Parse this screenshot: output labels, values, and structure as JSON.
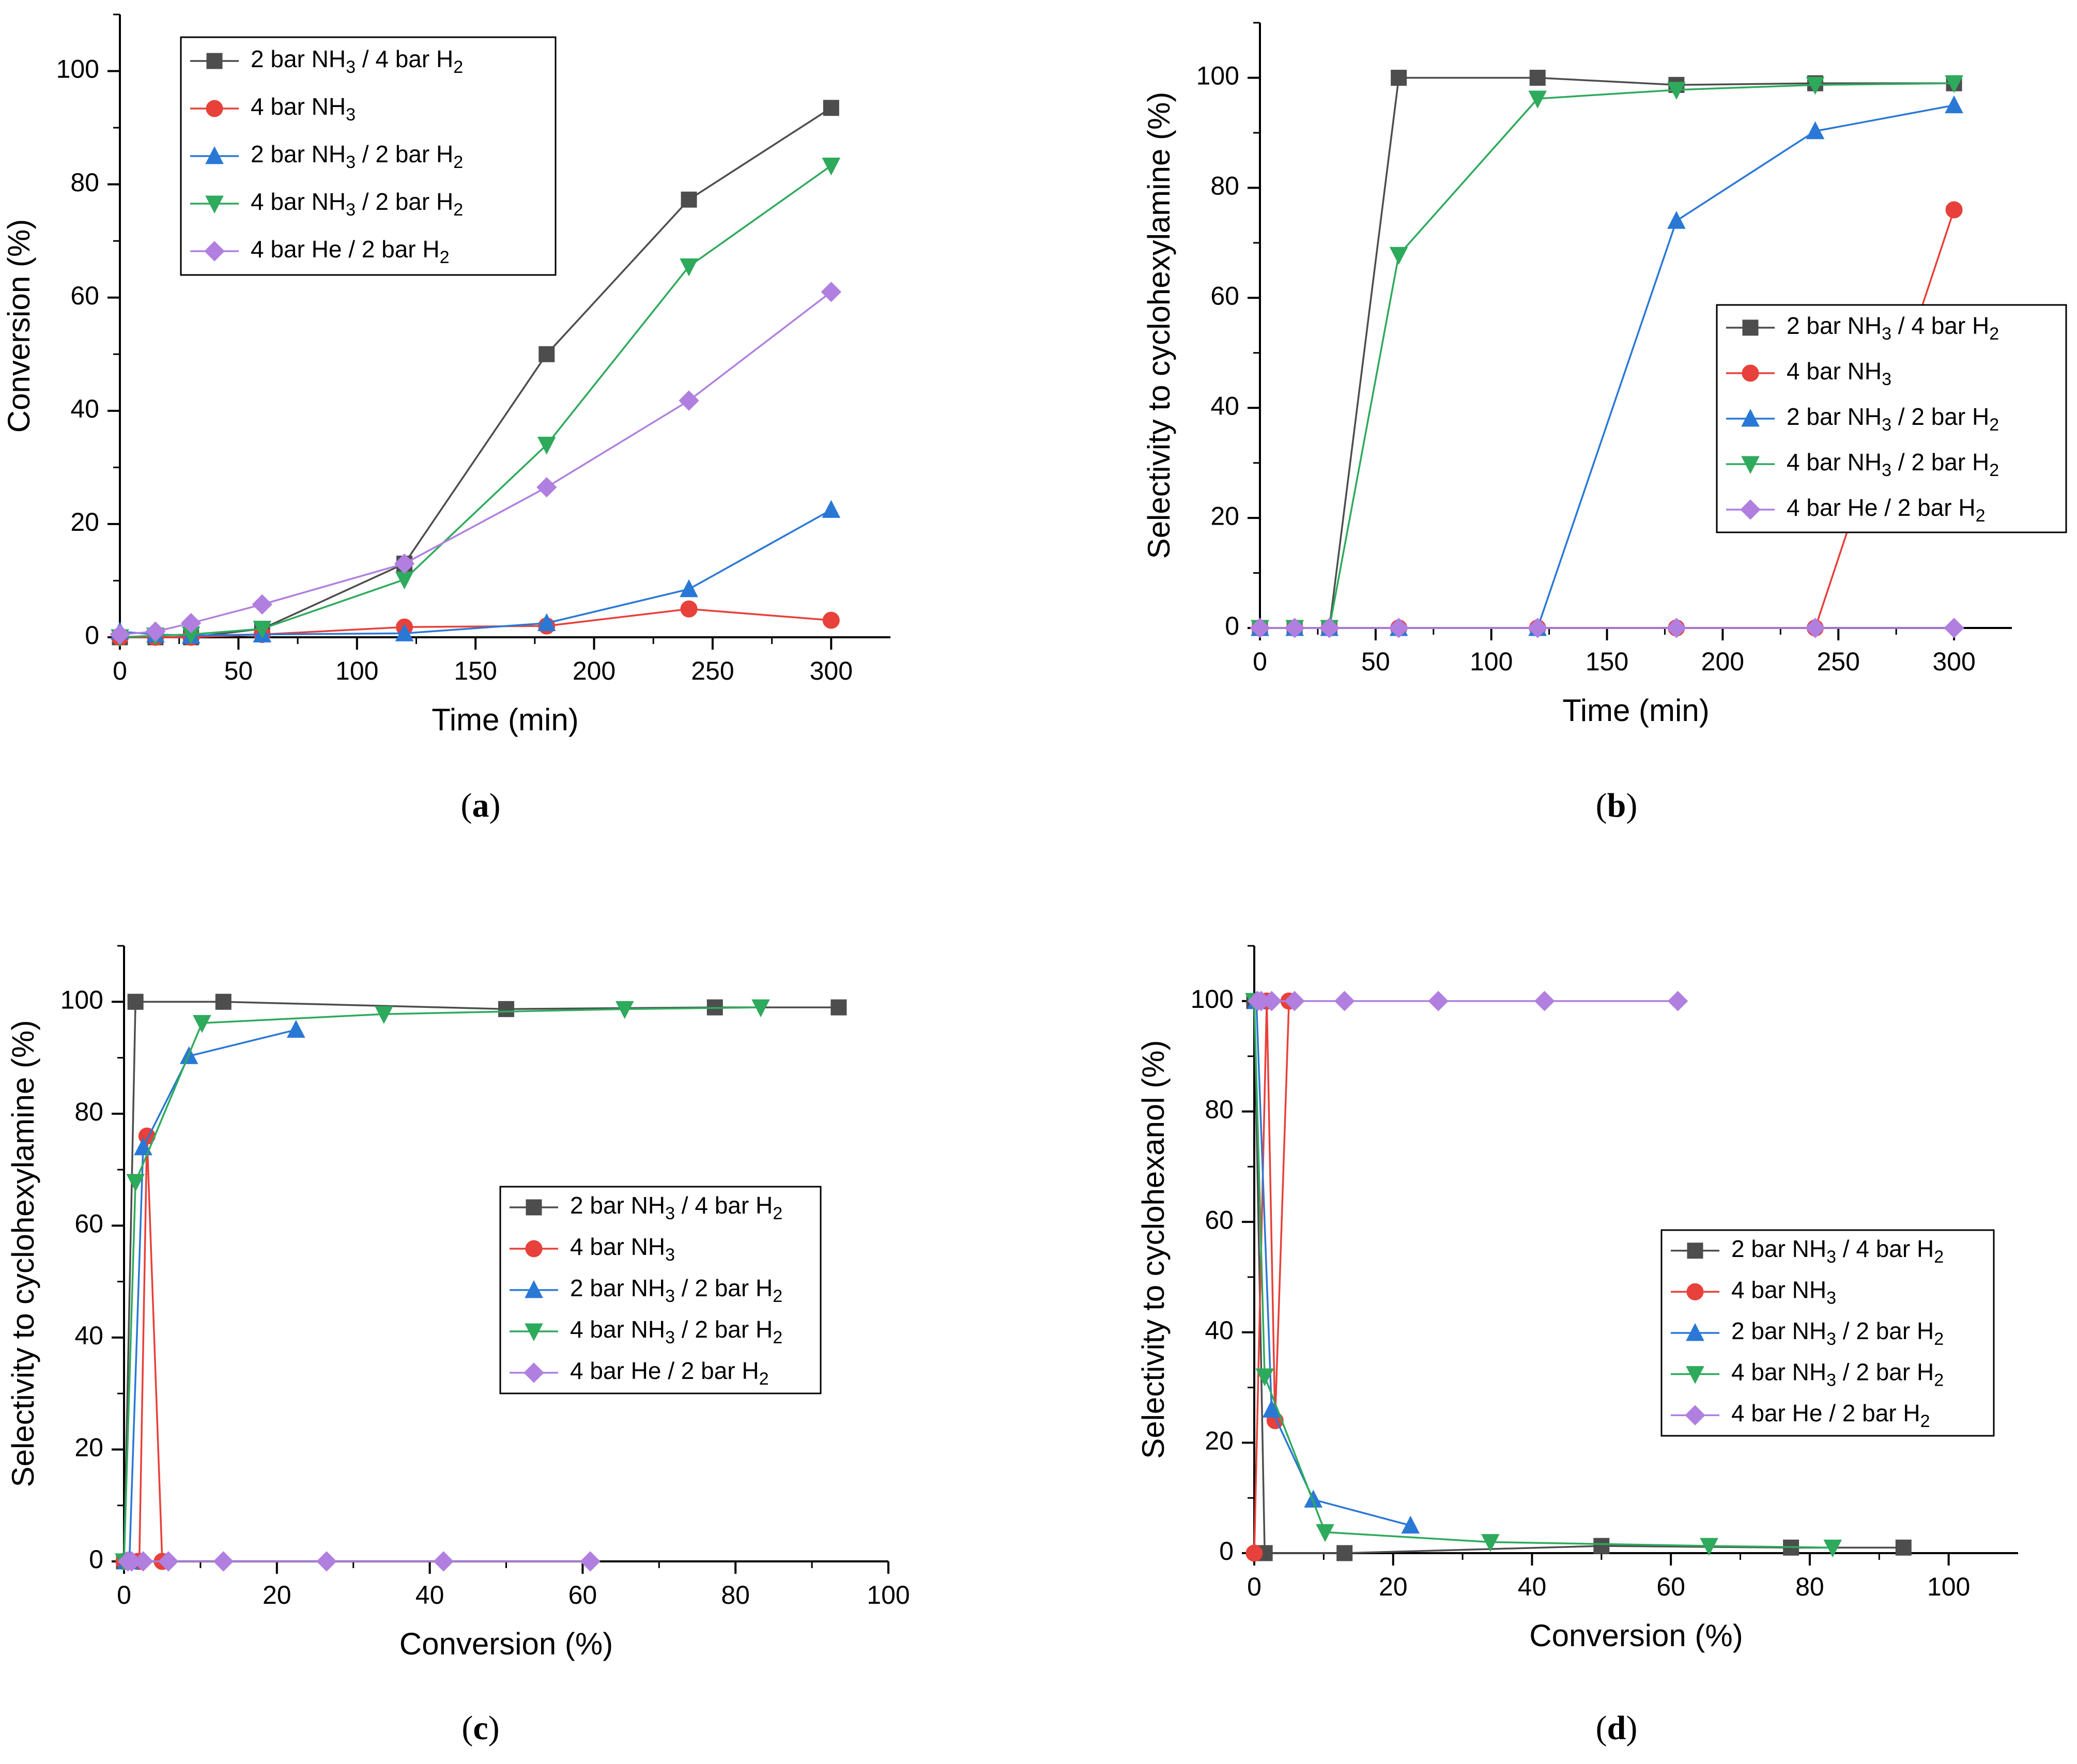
{
  "figure": {
    "series_styles": [
      {
        "color": "#4d4d4d",
        "marker": "square"
      },
      {
        "color": "#e8403a",
        "marker": "circle"
      },
      {
        "color": "#2a78d6",
        "marker": "triangle-up"
      },
      {
        "color": "#2eaa5c",
        "marker": "triangle-down"
      },
      {
        "color": "#b07fe0",
        "marker": "diamond"
      }
    ]
  },
  "chart_data": [
    {
      "id": "a",
      "type": "line",
      "caption": "a",
      "xlabel": "Time (min)",
      "ylabel": "Conversion (%)",
      "xlim": [
        0,
        325
      ],
      "ylim": [
        0,
        110
      ],
      "xticks": [
        0,
        50,
        100,
        150,
        200,
        250,
        300
      ],
      "yticks": [
        0,
        20,
        40,
        60,
        80,
        100
      ],
      "legend_position": "top-left",
      "series": [
        {
          "name": "2 bar NH3 / 4 bar H2",
          "label": {
            "pre": "2 bar NH",
            "s1": "3",
            "mid": " / 4 bar H",
            "s2": "2"
          },
          "x": [
            0,
            15,
            30,
            60,
            120,
            180,
            240,
            300
          ],
          "y": [
            0,
            0,
            0,
            1.5,
            13,
            50,
            77.3,
            93.5
          ]
        },
        {
          "name": "4 bar NH3",
          "label": {
            "pre": "4 bar NH",
            "s1": "3",
            "mid": "",
            "s2": ""
          },
          "x": [
            0,
            15,
            30,
            60,
            120,
            180,
            240,
            300
          ],
          "y": [
            0,
            0,
            0,
            0.5,
            1.8,
            2,
            5,
            3
          ]
        },
        {
          "name": "2 bar NH3 / 2 bar H2",
          "label": {
            "pre": "2 bar NH",
            "s1": "3",
            "mid": " / 2 bar H",
            "s2": "2"
          },
          "x": [
            0,
            15,
            30,
            60,
            120,
            180,
            240,
            300
          ],
          "y": [
            1,
            0.5,
            0.3,
            0.5,
            0.7,
            2.5,
            8.5,
            22.5
          ]
        },
        {
          "name": "4 bar NH3 / 2 bar H2",
          "label": {
            "pre": "4 bar NH",
            "s1": "3",
            "mid": " / 2 bar H",
            "s2": "2"
          },
          "x": [
            0,
            15,
            30,
            60,
            120,
            180,
            240,
            300
          ],
          "y": [
            0,
            0.3,
            0.5,
            1.5,
            10.2,
            34,
            65.5,
            83.3
          ]
        },
        {
          "name": "4 bar He / 2 bar H2",
          "label": {
            "pre": "4 bar He / 2 bar H",
            "s1": "2",
            "mid": "",
            "s2": ""
          },
          "x": [
            0,
            15,
            30,
            60,
            120,
            180,
            240,
            300
          ],
          "y": [
            0.5,
            1,
            2.5,
            5.8,
            13,
            26.5,
            41.8,
            61
          ]
        }
      ]
    },
    {
      "id": "b",
      "type": "line",
      "caption": "b",
      "xlabel": "Time (min)",
      "ylabel": "Selectivity to cyclohexylamine (%)",
      "xlim": [
        0,
        325
      ],
      "ylim": [
        0,
        110
      ],
      "xticks": [
        0,
        50,
        100,
        150,
        200,
        250,
        300
      ],
      "yticks": [
        0,
        20,
        40,
        60,
        80,
        100
      ],
      "legend_position": "center-right",
      "series": [
        {
          "name": "2 bar NH3 / 4 bar H2",
          "label": {
            "pre": "2 bar NH",
            "s1": "3",
            "mid": " / 4 bar H",
            "s2": "2"
          },
          "x": [
            0,
            15,
            30,
            60,
            120,
            180,
            240,
            300
          ],
          "y": [
            0,
            0,
            0,
            100,
            100,
            98.7,
            99,
            99
          ]
        },
        {
          "name": "4 bar NH3",
          "label": {
            "pre": "4 bar NH",
            "s1": "3",
            "mid": "",
            "s2": ""
          },
          "x": [
            0,
            15,
            30,
            60,
            120,
            180,
            240,
            300
          ],
          "y": [
            0,
            0,
            0,
            0,
            0,
            0,
            0,
            76
          ]
        },
        {
          "name": "2 bar NH3 / 2 bar H2",
          "label": {
            "pre": "2 bar NH",
            "s1": "3",
            "mid": " / 2 bar H",
            "s2": "2"
          },
          "x": [
            0,
            15,
            30,
            60,
            120,
            180,
            240,
            300
          ],
          "y": [
            0,
            0,
            0,
            0,
            0,
            74,
            90.3,
            95
          ]
        },
        {
          "name": "4 bar NH3 / 2 bar H2",
          "label": {
            "pre": "4 bar NH",
            "s1": "3",
            "mid": " / 2 bar H",
            "s2": "2"
          },
          "x": [
            0,
            15,
            30,
            60,
            120,
            180,
            240,
            300
          ],
          "y": [
            0,
            0,
            0,
            67.8,
            96.2,
            97.8,
            98.7,
            99
          ]
        },
        {
          "name": "4 bar He / 2 bar H2",
          "label": {
            "pre": "4 bar He / 2 bar H",
            "s1": "2",
            "mid": "",
            "s2": ""
          },
          "x": [
            0,
            15,
            30,
            60,
            120,
            180,
            240,
            300
          ],
          "y": [
            0,
            0,
            0,
            0,
            0,
            0,
            0,
            0
          ]
        }
      ]
    },
    {
      "id": "c",
      "type": "line",
      "caption": "c",
      "xlabel": "Conversion (%)",
      "ylabel": "Selectivity to cyclohexylamine (%)",
      "xlim": [
        0,
        100
      ],
      "ylim": [
        0,
        110
      ],
      "xticks": [
        0,
        20,
        40,
        60,
        80,
        100
      ],
      "yticks": [
        0,
        20,
        40,
        60,
        80,
        100
      ],
      "legend_position": "center-right",
      "series": [
        {
          "name": "2 bar NH3 / 4 bar H2",
          "label": {
            "pre": "2 bar NH",
            "s1": "3",
            "mid": " / 4 bar H",
            "s2": "2"
          },
          "x": [
            0,
            1.5,
            13,
            50,
            77.3,
            93.5
          ],
          "y": [
            0,
            100,
            100,
            98.7,
            99,
            99
          ]
        },
        {
          "name": "4 bar NH3",
          "label": {
            "pre": "4 bar NH",
            "s1": "3",
            "mid": "",
            "s2": ""
          },
          "x": [
            0,
            0.5,
            1.8,
            2,
            3,
            5
          ],
          "y": [
            0,
            0,
            0,
            0,
            76,
            0
          ]
        },
        {
          "name": "2 bar NH3 / 2 bar H2",
          "label": {
            "pre": "2 bar NH",
            "s1": "3",
            "mid": " / 2 bar H",
            "s2": "2"
          },
          "x": [
            0.3,
            0.5,
            0.7,
            2.5,
            8.5,
            22.5
          ],
          "y": [
            0,
            0,
            0,
            74,
            90.3,
            95
          ]
        },
        {
          "name": "4 bar NH3 / 2 bar H2",
          "label": {
            "pre": "4 bar NH",
            "s1": "3",
            "mid": " / 2 bar H",
            "s2": "2"
          },
          "x": [
            0,
            1.5,
            10.2,
            34,
            65.5,
            83.3
          ],
          "y": [
            0,
            67.8,
            96.2,
            97.8,
            98.7,
            99
          ]
        },
        {
          "name": "4 bar He / 2 bar H2",
          "label": {
            "pre": "4 bar He / 2 bar H",
            "s1": "2",
            "mid": "",
            "s2": ""
          },
          "x": [
            0.5,
            1,
            2.5,
            5.8,
            13,
            26.5,
            41.8,
            61
          ],
          "y": [
            0,
            0,
            0,
            0,
            0,
            0,
            0,
            0
          ]
        }
      ]
    },
    {
      "id": "d",
      "type": "line",
      "caption": "d",
      "xlabel": "Conversion (%)",
      "ylabel": "Selectivity to cyclohexanol (%)",
      "xlim": [
        0,
        110
      ],
      "ylim": [
        0,
        110
      ],
      "xticks": [
        0,
        20,
        40,
        60,
        80,
        100
      ],
      "yticks": [
        0,
        20,
        40,
        60,
        80,
        100
      ],
      "legend_position": "center-right",
      "series": [
        {
          "name": "2 bar NH3 / 4 bar H2",
          "label": {
            "pre": "2 bar NH",
            "s1": "3",
            "mid": " / 4 bar H",
            "s2": "2"
          },
          "x": [
            0,
            1.5,
            13,
            50,
            77.3,
            93.5
          ],
          "y": [
            100,
            0,
            0,
            1.3,
            1,
            1
          ]
        },
        {
          "name": "4 bar NH3",
          "label": {
            "pre": "4 bar NH",
            "s1": "3",
            "mid": "",
            "s2": ""
          },
          "x": [
            0,
            1.8,
            3,
            5
          ],
          "y": [
            0,
            100,
            24,
            100
          ]
        },
        {
          "name": "2 bar NH3 / 2 bar H2",
          "label": {
            "pre": "2 bar NH",
            "s1": "3",
            "mid": " / 2 bar H",
            "s2": "2"
          },
          "x": [
            0.3,
            2.5,
            8.5,
            22.5
          ],
          "y": [
            100,
            26,
            9.7,
            5
          ]
        },
        {
          "name": "4 bar NH3 / 2 bar H2",
          "label": {
            "pre": "4 bar NH",
            "s1": "3",
            "mid": " / 2 bar H",
            "s2": "2"
          },
          "x": [
            0,
            1.5,
            10.2,
            34,
            65.5,
            83.3
          ],
          "y": [
            100,
            32,
            3.8,
            2,
            1.3,
            1
          ]
        },
        {
          "name": "4 bar He / 2 bar H2",
          "label": {
            "pre": "4 bar He / 2 bar H",
            "s1": "2",
            "mid": "",
            "s2": ""
          },
          "x": [
            0.5,
            1,
            2.5,
            5.8,
            13,
            26.5,
            41.8,
            61
          ],
          "y": [
            100,
            100,
            100,
            100,
            100,
            100,
            100,
            100
          ]
        }
      ]
    }
  ]
}
